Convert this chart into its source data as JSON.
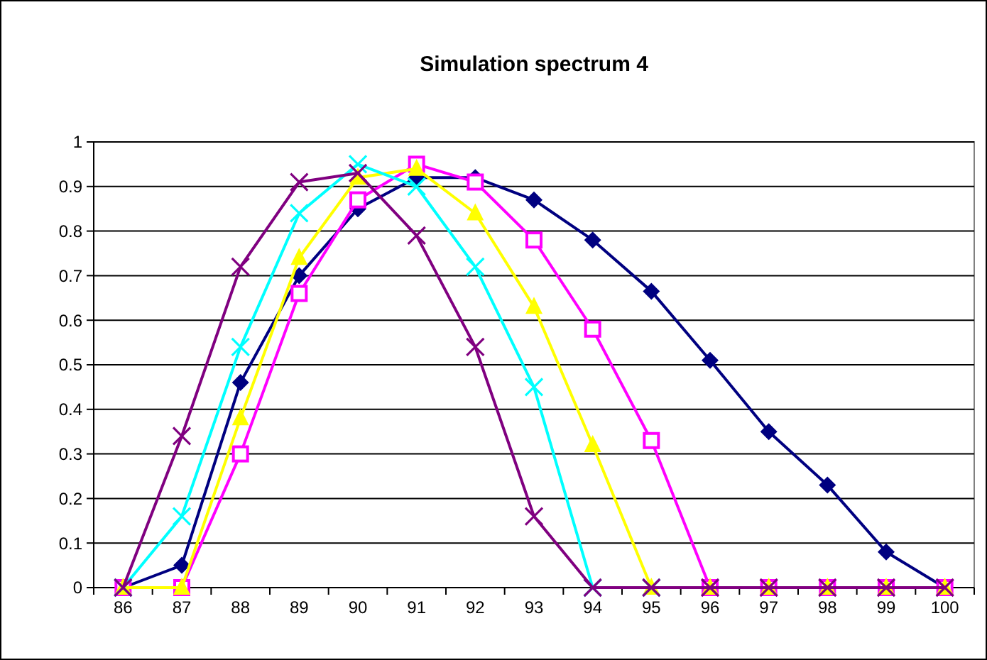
{
  "chart_data": {
    "type": "line",
    "title": "Simulation spectrum 4",
    "categories": [
      "86",
      "87",
      "88",
      "89",
      "90",
      "91",
      "92",
      "93",
      "94",
      "95",
      "96",
      "97",
      "98",
      "99",
      "100"
    ],
    "series": [
      {
        "color": "#000080",
        "marker": "diamond",
        "values": [
          0,
          0.05,
          0.46,
          0.7,
          0.85,
          0.92,
          0.92,
          0.87,
          0.78,
          0.665,
          0.51,
          0.35,
          0.23,
          0.08,
          0
        ]
      },
      {
        "color": "#ff00ff",
        "marker": "square",
        "values": [
          0,
          0,
          0.3,
          0.66,
          0.87,
          0.95,
          0.91,
          0.78,
          0.58,
          0.33,
          0,
          0,
          0,
          0,
          0
        ]
      },
      {
        "color": "#ffff00",
        "marker": "triangle",
        "values": [
          0,
          0,
          0.38,
          0.74,
          0.92,
          0.94,
          0.84,
          0.63,
          0.32,
          0,
          0,
          0,
          0,
          0,
          0
        ]
      },
      {
        "color": "#00ffff",
        "marker": "cross",
        "values": [
          0,
          0.16,
          0.54,
          0.84,
          0.95,
          0.9,
          0.72,
          0.45,
          0,
          0,
          null,
          null,
          null,
          null,
          null
        ]
      },
      {
        "color": "#800080",
        "marker": "cross",
        "values": [
          0,
          0.34,
          0.72,
          0.91,
          0.93,
          0.79,
          0.54,
          0.16,
          0,
          0,
          0,
          0,
          0,
          0,
          0
        ]
      }
    ],
    "ylim": [
      0,
      1
    ],
    "yticks": [
      0,
      0.1,
      0.2,
      0.3,
      0.4,
      0.5,
      0.6,
      0.7,
      0.8,
      0.9,
      1
    ],
    "grid": "y"
  }
}
